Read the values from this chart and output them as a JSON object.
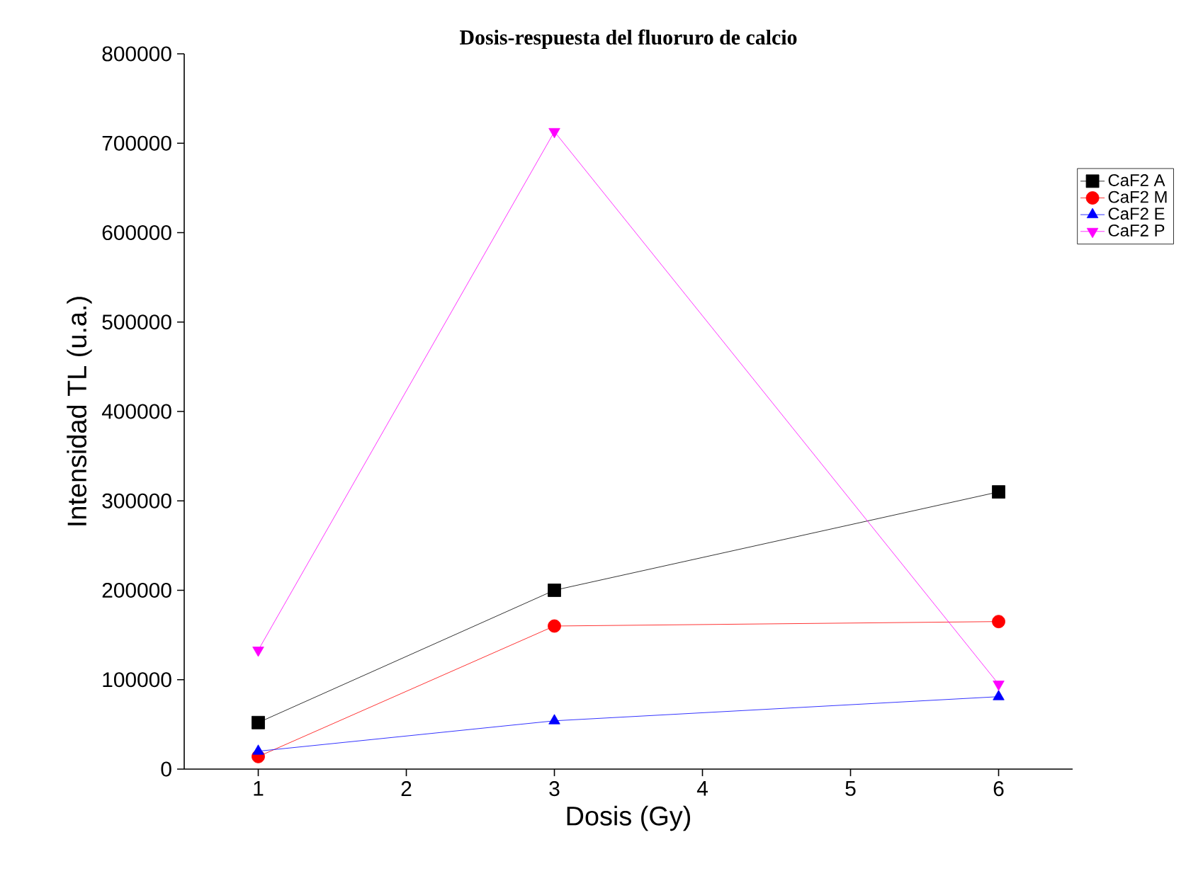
{
  "chart_data": {
    "type": "line",
    "title": "Dosis-respuesta del fluoruro de calcio",
    "xlabel": "Dosis (Gy)",
    "ylabel": "Intensidad TL (u.a.)",
    "x": [
      1,
      3,
      6
    ],
    "series": [
      {
        "name": "CaF2 A",
        "color": "#000000",
        "marker": "square",
        "values": [
          52000,
          200000,
          310000
        ]
      },
      {
        "name": "CaF2 M",
        "color": "#ff0000",
        "marker": "circle",
        "values": [
          14000,
          160000,
          165000
        ]
      },
      {
        "name": "CaF2 E",
        "color": "#0000ff",
        "marker": "triangle",
        "values": [
          20000,
          54000,
          81000
        ]
      },
      {
        "name": "CaF2 P",
        "color": "#ff00ff",
        "marker": "triangle-down",
        "values": [
          133000,
          713000,
          95000
        ]
      }
    ],
    "xlim": [
      0.5,
      6.5
    ],
    "xticks": [
      1,
      2,
      3,
      4,
      5,
      6
    ],
    "ylim": [
      0,
      800000
    ],
    "yticks": [
      0,
      100000,
      200000,
      300000,
      400000,
      500000,
      600000,
      700000,
      800000
    ],
    "grid": false,
    "legend": "top right",
    "line_style": "solid"
  }
}
